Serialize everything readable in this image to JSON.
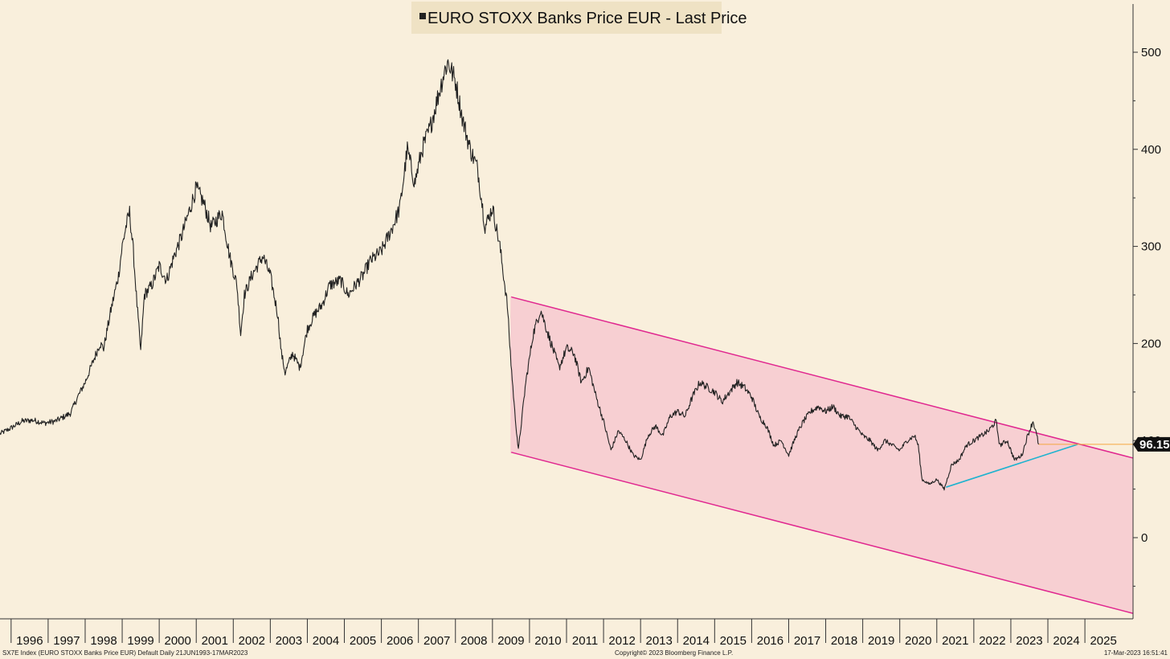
{
  "chart_data": {
    "type": "line",
    "title": "EURO STOXX Banks Price EUR - Last Price",
    "legend_placement": "top-center",
    "grid": false,
    "xlabel": "",
    "ylabel": "",
    "x_ticks": [
      "1996",
      "1997",
      "1998",
      "1999",
      "2000",
      "2001",
      "2002",
      "2003",
      "2004",
      "2005",
      "2006",
      "2007",
      "2008",
      "2009",
      "2010",
      "2011",
      "2012",
      "2013",
      "2014",
      "2015",
      "2016",
      "2017",
      "2018",
      "2019",
      "2020",
      "2021",
      "2022",
      "2023",
      "2024",
      "2025"
    ],
    "y_ticks": [
      0,
      100,
      200,
      300,
      400,
      500
    ],
    "ylim": [
      -80,
      550
    ],
    "xlim": [
      1995.2,
      2025.8
    ],
    "last_price_label": "96.15",
    "last_price": 96.15,
    "series": [
      {
        "name": "EURO STOXX Banks Price EUR - Last Price",
        "color": "#222222",
        "points": [
          [
            1995.2,
            107
          ],
          [
            1995.5,
            113
          ],
          [
            1995.8,
            120
          ],
          [
            1996.1,
            121
          ],
          [
            1996.4,
            118
          ],
          [
            1996.7,
            120
          ],
          [
            1996.9,
            124
          ],
          [
            1997.1,
            128
          ],
          [
            1997.3,
            145
          ],
          [
            1997.5,
            160
          ],
          [
            1997.7,
            180
          ],
          [
            1997.9,
            200
          ],
          [
            1998.0,
            195
          ],
          [
            1998.2,
            235
          ],
          [
            1998.4,
            270
          ],
          [
            1998.5,
            300
          ],
          [
            1998.6,
            320
          ],
          [
            1998.7,
            335
          ],
          [
            1998.8,
            295
          ],
          [
            1998.9,
            240
          ],
          [
            1999.0,
            192
          ],
          [
            1999.1,
            250
          ],
          [
            1999.3,
            260
          ],
          [
            1999.5,
            280
          ],
          [
            1999.7,
            265
          ],
          [
            1999.9,
            290
          ],
          [
            2000.1,
            310
          ],
          [
            2000.3,
            335
          ],
          [
            2000.5,
            360
          ],
          [
            2000.7,
            345
          ],
          [
            2000.9,
            320
          ],
          [
            2001.2,
            335
          ],
          [
            2001.4,
            290
          ],
          [
            2001.6,
            260
          ],
          [
            2001.7,
            210
          ],
          [
            2001.8,
            250
          ],
          [
            2002.0,
            270
          ],
          [
            2002.3,
            290
          ],
          [
            2002.5,
            270
          ],
          [
            2002.7,
            230
          ],
          [
            2002.8,
            190
          ],
          [
            2002.9,
            170
          ],
          [
            2003.1,
            190
          ],
          [
            2003.3,
            175
          ],
          [
            2003.5,
            215
          ],
          [
            2003.7,
            230
          ],
          [
            2003.9,
            240
          ],
          [
            2004.1,
            260
          ],
          [
            2004.4,
            265
          ],
          [
            2004.6,
            250
          ],
          [
            2004.8,
            260
          ],
          [
            2005.0,
            270
          ],
          [
            2005.2,
            285
          ],
          [
            2005.5,
            295
          ],
          [
            2005.8,
            320
          ],
          [
            2006.0,
            340
          ],
          [
            2006.2,
            400
          ],
          [
            2006.4,
            365
          ],
          [
            2006.6,
            400
          ],
          [
            2006.8,
            420
          ],
          [
            2007.0,
            450
          ],
          [
            2007.2,
            480
          ],
          [
            2007.3,
            490
          ],
          [
            2007.5,
            470
          ],
          [
            2007.7,
            430
          ],
          [
            2007.9,
            400
          ],
          [
            2008.1,
            380
          ],
          [
            2008.3,
            320
          ],
          [
            2008.5,
            340
          ],
          [
            2008.7,
            300
          ],
          [
            2008.9,
            240
          ],
          [
            2009.0,
            180
          ],
          [
            2009.1,
            130
          ],
          [
            2009.2,
            90
          ],
          [
            2009.4,
            160
          ],
          [
            2009.6,
            210
          ],
          [
            2009.8,
            235
          ],
          [
            2010.0,
            210
          ],
          [
            2010.3,
            175
          ],
          [
            2010.5,
            195
          ],
          [
            2010.7,
            190
          ],
          [
            2010.9,
            160
          ],
          [
            2011.1,
            175
          ],
          [
            2011.3,
            145
          ],
          [
            2011.5,
            120
          ],
          [
            2011.7,
            90
          ],
          [
            2011.9,
            110
          ],
          [
            2012.1,
            100
          ],
          [
            2012.3,
            85
          ],
          [
            2012.5,
            80
          ],
          [
            2012.7,
            105
          ],
          [
            2012.9,
            115
          ],
          [
            2013.1,
            105
          ],
          [
            2013.3,
            125
          ],
          [
            2013.5,
            130
          ],
          [
            2013.7,
            125
          ],
          [
            2013.9,
            145
          ],
          [
            2014.1,
            160
          ],
          [
            2014.3,
            155
          ],
          [
            2014.5,
            150
          ],
          [
            2014.7,
            140
          ],
          [
            2014.9,
            150
          ],
          [
            2015.1,
            160
          ],
          [
            2015.3,
            155
          ],
          [
            2015.5,
            145
          ],
          [
            2015.7,
            125
          ],
          [
            2015.9,
            115
          ],
          [
            2016.1,
            95
          ],
          [
            2016.3,
            100
          ],
          [
            2016.5,
            85
          ],
          [
            2016.7,
            105
          ],
          [
            2016.9,
            120
          ],
          [
            2017.1,
            130
          ],
          [
            2017.3,
            135
          ],
          [
            2017.5,
            130
          ],
          [
            2017.7,
            135
          ],
          [
            2017.9,
            125
          ],
          [
            2018.1,
            125
          ],
          [
            2018.3,
            115
          ],
          [
            2018.5,
            105
          ],
          [
            2018.7,
            100
          ],
          [
            2018.9,
            90
          ],
          [
            2019.1,
            100
          ],
          [
            2019.3,
            95
          ],
          [
            2019.5,
            90
          ],
          [
            2019.7,
            100
          ],
          [
            2019.9,
            105
          ],
          [
            2020.0,
            95
          ],
          [
            2020.1,
            60
          ],
          [
            2020.3,
            55
          ],
          [
            2020.5,
            60
          ],
          [
            2020.7,
            50
          ],
          [
            2020.9,
            75
          ],
          [
            2021.1,
            80
          ],
          [
            2021.3,
            95
          ],
          [
            2021.5,
            100
          ],
          [
            2021.7,
            105
          ],
          [
            2021.9,
            110
          ],
          [
            2022.1,
            120
          ],
          [
            2022.2,
            95
          ],
          [
            2022.4,
            100
          ],
          [
            2022.6,
            80
          ],
          [
            2022.8,
            85
          ],
          [
            2022.95,
            105
          ],
          [
            2023.1,
            120
          ],
          [
            2023.2,
            105
          ],
          [
            2023.25,
            96.15
          ]
        ]
      }
    ],
    "channel": {
      "color": "#e0278f",
      "fill": "#f7c9d0",
      "x_start": 2009.0,
      "x_end": 2025.8,
      "upper": [
        248,
        82
      ],
      "lower": [
        88,
        -78
      ]
    },
    "support_line": {
      "color": "#1fb3cf",
      "points": [
        [
          2020.75,
          52
        ],
        [
          2024.3,
          96
        ]
      ]
    },
    "last_price_line": {
      "color": "#f4a640",
      "x_from": 2023.25
    },
    "footer": {
      "left": "SX7E Index (EURO STOXX Banks Price EUR) Default  Daily 21JUN1993-17MAR2023",
      "center": "Copyright© 2023 Bloomberg Finance L.P.",
      "right": "17-Mar-2023 16:51:41"
    }
  }
}
